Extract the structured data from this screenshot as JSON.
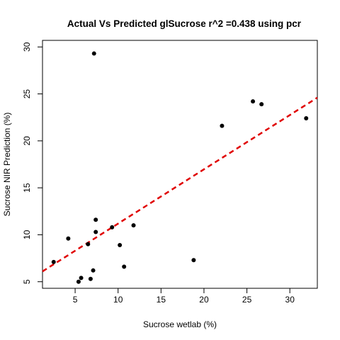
{
  "chart_data": {
    "type": "scatter",
    "title": "Actual Vs Predicted glSucrose r^2 =0.438 using pcr",
    "xlabel": "Sucrose wetlab (%)",
    "ylabel": "Sucrose NIR Prediction (%)",
    "xlim": [
      1.2,
      33.2
    ],
    "ylim": [
      4.3,
      30.7
    ],
    "xticks": [
      5,
      10,
      15,
      20,
      25,
      30
    ],
    "yticks": [
      5,
      10,
      15,
      20,
      25,
      30
    ],
    "grid": false,
    "legend": "none",
    "points": [
      {
        "x": 7.2,
        "y": 29.3
      },
      {
        "x": 2.5,
        "y": 7.1
      },
      {
        "x": 4.2,
        "y": 9.6
      },
      {
        "x": 5.4,
        "y": 5.0
      },
      {
        "x": 5.7,
        "y": 5.4
      },
      {
        "x": 6.5,
        "y": 9.0
      },
      {
        "x": 6.8,
        "y": 5.3
      },
      {
        "x": 7.1,
        "y": 6.2
      },
      {
        "x": 7.4,
        "y": 11.6
      },
      {
        "x": 7.4,
        "y": 10.3
      },
      {
        "x": 9.3,
        "y": 10.8
      },
      {
        "x": 10.2,
        "y": 8.9
      },
      {
        "x": 10.7,
        "y": 6.6
      },
      {
        "x": 11.8,
        "y": 11.0
      },
      {
        "x": 18.8,
        "y": 7.3
      },
      {
        "x": 22.1,
        "y": 21.6
      },
      {
        "x": 25.7,
        "y": 24.2
      },
      {
        "x": 26.7,
        "y": 23.9
      },
      {
        "x": 31.9,
        "y": 22.4
      }
    ],
    "fit_line": {
      "x": [
        1.2,
        33.2
      ],
      "y": [
        6.1,
        24.6
      ]
    },
    "point_color": "#000000",
    "fit_color": "#e00000"
  }
}
